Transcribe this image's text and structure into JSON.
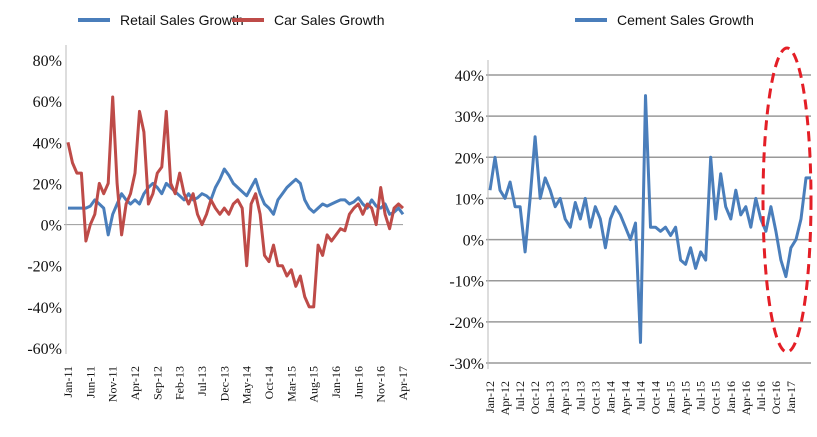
{
  "chart_data": [
    {
      "type": "line",
      "categories": [
        "Jan-11",
        null,
        null,
        null,
        null,
        "Jun-11",
        null,
        null,
        null,
        null,
        "Nov-11",
        null,
        null,
        null,
        null,
        "Apr-12",
        null,
        null,
        null,
        null,
        "Sep-12",
        null,
        null,
        null,
        null,
        "Feb-13",
        null,
        null,
        null,
        null,
        "Jul-13",
        null,
        null,
        null,
        null,
        "Dec-13",
        null,
        null,
        null,
        null,
        "May-14",
        null,
        null,
        null,
        null,
        "Oct-14",
        null,
        null,
        null,
        null,
        "Mar-15",
        null,
        null,
        null,
        null,
        "Aug-15",
        null,
        null,
        null,
        null,
        "Jan-16",
        null,
        null,
        null,
        null,
        "Jun-16",
        null,
        null,
        null,
        null,
        "Nov-16",
        null,
        null,
        null,
        null,
        "Apr-17"
      ],
      "series": [
        {
          "name": "Retail Sales Growth",
          "color": "#4a7ebb",
          "values": [
            8,
            8,
            8,
            8,
            8,
            9,
            12,
            10,
            8,
            -5,
            5,
            10,
            15,
            12,
            10,
            12,
            10,
            15,
            18,
            20,
            18,
            15,
            20,
            18,
            16,
            14,
            12,
            15,
            12,
            13,
            15,
            14,
            12,
            18,
            22,
            27,
            24,
            20,
            18,
            16,
            14,
            18,
            22,
            15,
            10,
            8,
            5,
            12,
            15,
            18,
            20,
            22,
            20,
            12,
            8,
            6,
            8,
            10,
            9,
            10,
            11,
            12,
            12,
            10,
            11,
            13,
            10,
            8,
            12,
            9,
            8,
            10,
            5,
            6,
            8,
            5
          ]
        },
        {
          "name": "Car Sales Growth",
          "color": "#be4b48",
          "values": [
            40,
            30,
            25,
            25,
            -8,
            0,
            5,
            20,
            15,
            20,
            62,
            20,
            -5,
            10,
            15,
            25,
            55,
            45,
            10,
            15,
            25,
            28,
            55,
            20,
            15,
            25,
            15,
            10,
            15,
            5,
            0,
            5,
            12,
            8,
            5,
            8,
            5,
            10,
            12,
            8,
            -20,
            10,
            15,
            5,
            -15,
            -18,
            -10,
            -20,
            -20,
            -25,
            -22,
            -30,
            -25,
            -35,
            -40,
            -40,
            -10,
            -15,
            -5,
            -8,
            -5,
            -2,
            -3,
            5,
            8,
            10,
            5,
            10,
            8,
            0,
            18,
            5,
            -2,
            8,
            10,
            8
          ]
        }
      ],
      "ylim": [
        -60,
        80
      ],
      "yticks": [
        {
          "value": -60,
          "label": "-60%"
        },
        {
          "value": -40,
          "label": "-40%"
        },
        {
          "value": -20,
          "label": "-20%"
        },
        {
          "value": 0,
          "label": "0%"
        },
        {
          "value": 20,
          "label": "20%"
        },
        {
          "value": 40,
          "label": "40%"
        },
        {
          "value": 60,
          "label": "60%"
        },
        {
          "value": 80,
          "label": "80%"
        }
      ],
      "grid": false
    },
    {
      "type": "line",
      "categories": [
        "Jan-12",
        null,
        null,
        "Apr-12",
        null,
        null,
        "Jul-12",
        null,
        null,
        "Oct-12",
        null,
        null,
        "Jan-13",
        null,
        null,
        "Apr-13",
        null,
        null,
        "Jul-13",
        null,
        null,
        "Oct-13",
        null,
        null,
        "Jan-14",
        null,
        null,
        "Apr-14",
        null,
        null,
        "Jul-14",
        null,
        null,
        "Oct-14",
        null,
        null,
        "Jan-15",
        null,
        null,
        "Apr-15",
        null,
        null,
        "Jul-15",
        null,
        null,
        "Oct-15",
        null,
        null,
        "Jan-16",
        null,
        null,
        "Apr-16",
        null,
        null,
        "Jul-16",
        null,
        null,
        "Oct-16",
        null,
        null,
        "Jan-17",
        null,
        null,
        null,
        null
      ],
      "series": [
        {
          "name": "Cement Sales Growth",
          "color": "#4a7ebb",
          "values": [
            12,
            20,
            12,
            10,
            14,
            8,
            8,
            -3,
            10,
            25,
            10,
            15,
            12,
            8,
            10,
            5,
            3,
            9,
            5,
            10,
            3,
            8,
            5,
            -2,
            5,
            8,
            6,
            3,
            0,
            4,
            -25,
            35,
            3,
            3,
            2,
            3,
            1,
            3,
            -5,
            -6,
            -2,
            -7,
            -3,
            -5,
            20,
            5,
            16,
            8,
            5,
            12,
            6,
            8,
            3,
            10,
            5,
            2,
            8,
            2,
            -5,
            -9,
            -2,
            0,
            5,
            15,
            15
          ]
        }
      ],
      "ylim": [
        -30,
        40
      ],
      "yticks": [
        {
          "value": -30,
          "label": "-30%"
        },
        {
          "value": -20,
          "label": "-20%"
        },
        {
          "value": -10,
          "label": "-10%"
        },
        {
          "value": 0,
          "label": "0%"
        },
        {
          "value": 10,
          "label": "10%"
        },
        {
          "value": 20,
          "label": "20%"
        },
        {
          "value": 30,
          "label": "30%"
        },
        {
          "value": 40,
          "label": "40%"
        }
      ],
      "grid": true
    }
  ]
}
